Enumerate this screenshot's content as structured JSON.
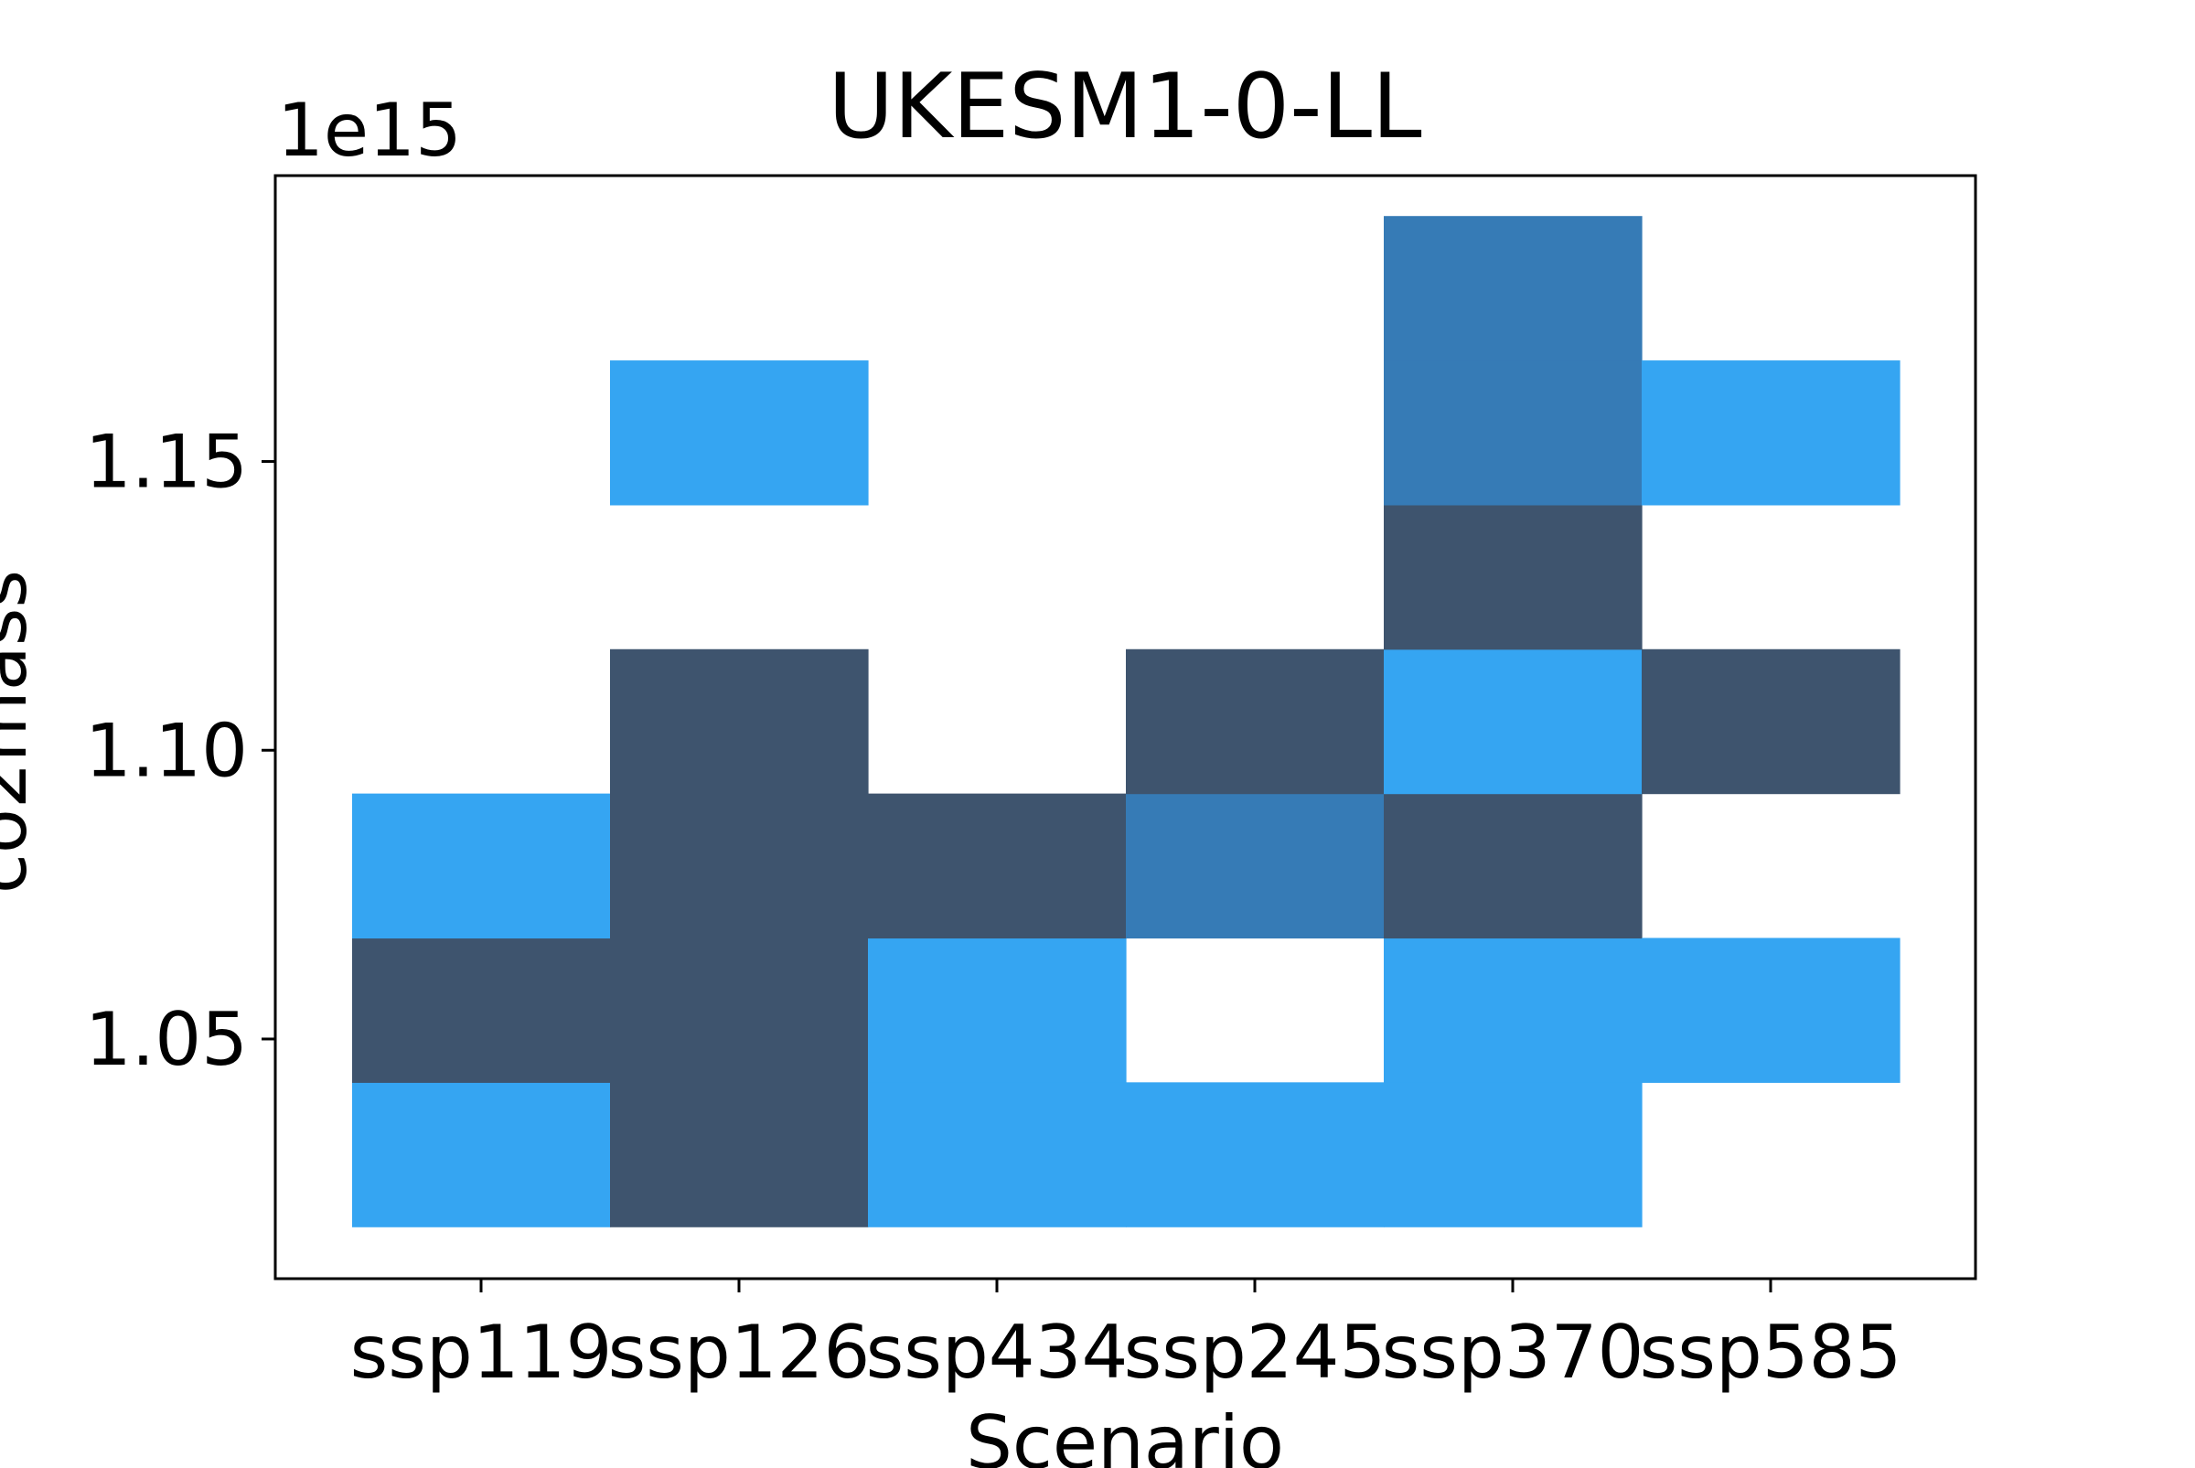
{
  "chart_data": {
    "type": "heatmap",
    "title": "UKESM1-0-LL",
    "xlabel": "Scenario",
    "ylabel": "co2mass",
    "y_offset_text": "1e15",
    "categories": [
      "ssp119",
      "ssp126",
      "ssp434",
      "ssp245",
      "ssp370",
      "ssp585"
    ],
    "y_ticks": [
      1.05,
      1.1,
      1.15
    ],
    "y_tick_labels": [
      "1.05",
      "1.10",
      "1.15"
    ],
    "ylim": [
      1.0085,
      1.1995
    ],
    "bin_edges": [
      1.0175,
      1.0425,
      1.0675,
      1.0925,
      1.1175,
      1.1425,
      1.1675,
      1.1925
    ],
    "counts": [
      [
        1,
        2,
        1,
        0,
        0,
        0,
        0
      ],
      [
        2,
        2,
        2,
        2,
        0,
        1,
        0
      ],
      [
        1,
        1,
        2,
        0,
        0,
        0,
        0
      ],
      [
        1,
        0,
        3,
        2,
        0,
        0,
        0
      ],
      [
        1,
        1,
        2,
        1,
        2,
        3,
        3
      ],
      [
        0,
        1,
        0,
        2,
        0,
        1,
        0
      ]
    ],
    "colors": {
      "1": "#35a5f2",
      "2": "#3e546e",
      "3": "#367bb6"
    },
    "grid": false,
    "legend": "none"
  }
}
